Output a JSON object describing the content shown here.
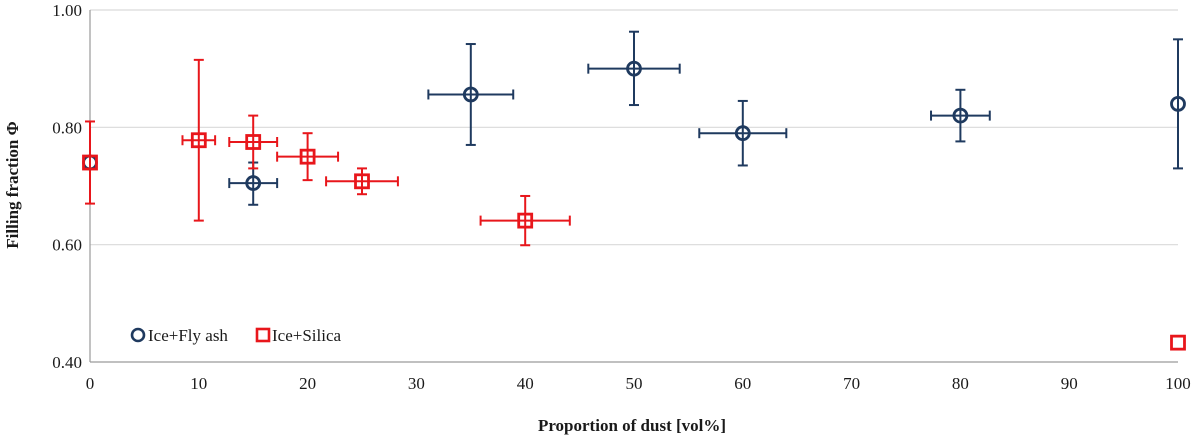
{
  "chart_data": {
    "type": "scatter",
    "title": "",
    "xlabel": "Proportion of dust [vol%]",
    "ylabel": "Filling fraction Φ",
    "xlim": [
      0,
      100
    ],
    "ylim": [
      0.4,
      1.0
    ],
    "x_ticks": [
      "0",
      "10",
      "20",
      "30",
      "40",
      "50",
      "60",
      "70",
      "80",
      "90",
      "100"
    ],
    "y_ticks": [
      "0.40",
      "0.60",
      "0.80",
      "1.00"
    ],
    "grid": "horizontal",
    "legend_position": "bottom-left",
    "series": [
      {
        "name": "Ice+Fly ash",
        "marker": "circle",
        "color": "#1f3a5f",
        "points": [
          {
            "x": 0,
            "y": 0.74
          },
          {
            "x": 15,
            "y": 0.705,
            "x_err": 2.2,
            "y_lo": 0.668,
            "y_hi": 0.74
          },
          {
            "x": 35,
            "y": 0.856,
            "x_err": 3.9,
            "y_lo": 0.77,
            "y_hi": 0.942
          },
          {
            "x": 50,
            "y": 0.9,
            "x_err": 4.2,
            "y_lo": 0.838,
            "y_hi": 0.963
          },
          {
            "x": 60,
            "y": 0.79,
            "x_err": 4.0,
            "y_lo": 0.735,
            "y_hi": 0.845
          },
          {
            "x": 80,
            "y": 0.82,
            "x_err": 2.7,
            "y_lo": 0.776,
            "y_hi": 0.864
          },
          {
            "x": 100,
            "y": 0.84,
            "y_lo": 0.73,
            "y_hi": 0.95
          }
        ]
      },
      {
        "name": "Ice+Silica",
        "marker": "square",
        "color": "#e8161b",
        "points": [
          {
            "x": 0,
            "y": 0.74,
            "y_lo": 0.67,
            "y_hi": 0.81
          },
          {
            "x": 10,
            "y": 0.778,
            "x_err": 1.5,
            "y_lo": 0.641,
            "y_hi": 0.915
          },
          {
            "x": 15,
            "y": 0.775,
            "x_err": 2.2,
            "y_lo": 0.73,
            "y_hi": 0.82
          },
          {
            "x": 20,
            "y": 0.75,
            "x_err": 2.8,
            "y_lo": 0.71,
            "y_hi": 0.79
          },
          {
            "x": 25,
            "y": 0.708,
            "x_err": 3.3,
            "y_lo": 0.686,
            "y_hi": 0.73
          },
          {
            "x": 40,
            "y": 0.641,
            "x_err": 4.1,
            "y_lo": 0.599,
            "y_hi": 0.683
          },
          {
            "x": 100,
            "y": 0.433
          }
        ]
      }
    ],
    "colors": {
      "axis": "#9a9a9a",
      "grid": "#d9d9d9",
      "fly_ash": "#1f3a5f",
      "silica": "#e8161b"
    }
  }
}
